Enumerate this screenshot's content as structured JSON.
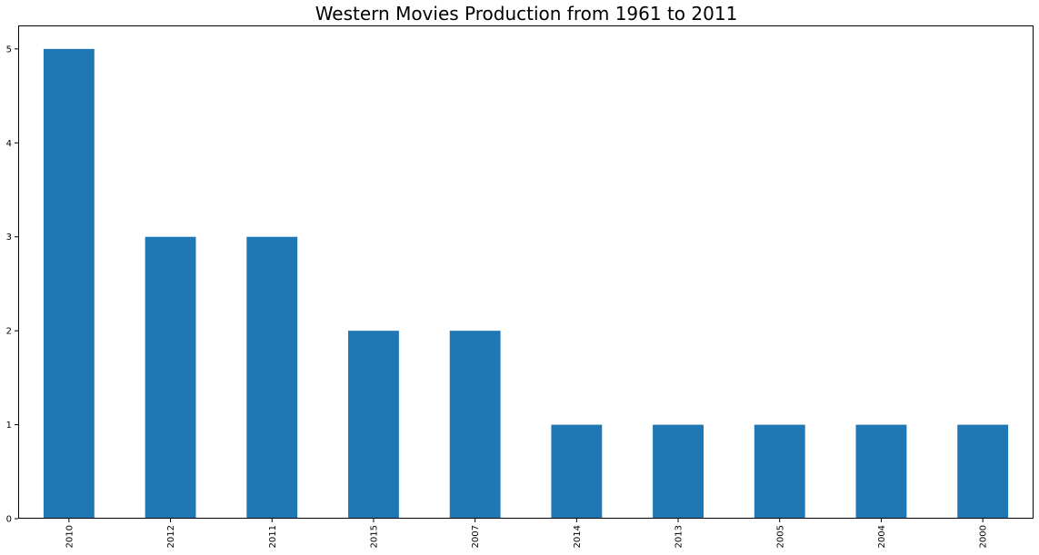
{
  "chart_data": {
    "type": "bar",
    "title": "Western Movies Production from 1961 to 2011",
    "xlabel": "",
    "ylabel": "",
    "categories": [
      "2010",
      "2012",
      "2011",
      "2015",
      "2007",
      "2014",
      "2013",
      "2005",
      "2004",
      "2000"
    ],
    "values": [
      5,
      3,
      3,
      2,
      2,
      1,
      1,
      1,
      1,
      1
    ],
    "ylim": [
      0,
      5.25
    ],
    "yticks": [
      0,
      1,
      2,
      3,
      4,
      5
    ],
    "grid": false,
    "legend": "none",
    "bar_color": "#1f77b4"
  }
}
